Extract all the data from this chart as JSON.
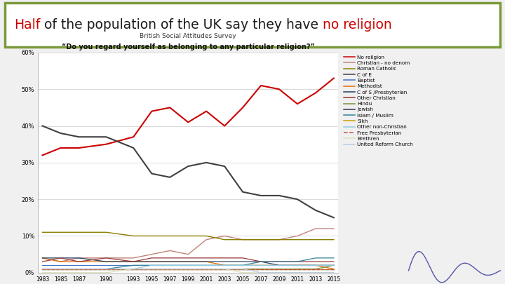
{
  "title_parts": [
    {
      "text": "Half",
      "color": "#cc0000"
    },
    {
      "text": " of the population of the UK say they have ",
      "color": "#1a1a1a"
    },
    {
      "text": "no religion",
      "color": "#cc0000"
    }
  ],
  "title_border_color": "#7a9a3a",
  "chart_title1": "British Social Attitudes Survey",
  "chart_title2": "“Do you regard yourself as belonging to any particular religion?”",
  "years": [
    1983,
    1985,
    1987,
    1990,
    1993,
    1995,
    1997,
    1999,
    2001,
    2003,
    2005,
    2007,
    2009,
    2011,
    2013,
    2015
  ],
  "series": [
    {
      "name": "No religion",
      "color": "#cc0000",
      "lw": 1.5,
      "values": [
        32,
        34,
        34,
        35,
        37,
        44,
        45,
        41,
        44,
        40,
        45,
        51,
        50,
        46,
        49,
        53
      ]
    },
    {
      "name": "Christian - no denom",
      "color": "#c0857a",
      "lw": 1.0,
      "values": [
        4,
        3,
        4,
        4,
        4,
        5,
        6,
        5,
        9,
        10,
        9,
        9,
        9,
        10,
        12,
        12
      ]
    },
    {
      "name": "Roman Catholic",
      "color": "#8b8000",
      "lw": 1.0,
      "values": [
        11,
        11,
        11,
        11,
        10,
        10,
        10,
        10,
        10,
        9,
        9,
        9,
        9,
        9,
        9,
        9
      ]
    },
    {
      "name": "C of E",
      "color": "#404040",
      "lw": 1.5,
      "values": [
        40,
        38,
        37,
        37,
        34,
        27,
        26,
        29,
        30,
        29,
        22,
        21,
        21,
        20,
        17,
        15
      ]
    },
    {
      "name": "Baptist",
      "color": "#4472c4",
      "lw": 0.9,
      "values": [
        2,
        2,
        2,
        2,
        2,
        2,
        2,
        2,
        2,
        2,
        2,
        2,
        2,
        2,
        2,
        2
      ]
    },
    {
      "name": "Methodist",
      "color": "#e36c00",
      "lw": 0.9,
      "values": [
        4,
        3,
        3,
        3,
        3,
        3,
        3,
        3,
        3,
        2,
        2,
        2,
        2,
        2,
        2,
        1
      ]
    },
    {
      "name": "C of S /Presbyterian",
      "color": "#244061",
      "lw": 0.9,
      "values": [
        4,
        4,
        4,
        3,
        3,
        3,
        3,
        3,
        3,
        3,
        3,
        3,
        2,
        2,
        2,
        2
      ]
    },
    {
      "name": "Other Christian",
      "color": "#953735",
      "lw": 0.9,
      "values": [
        3,
        4,
        3,
        4,
        3,
        4,
        4,
        4,
        4,
        4,
        4,
        3,
        3,
        3,
        3,
        3
      ]
    },
    {
      "name": "Hindu",
      "color": "#76923c",
      "lw": 0.9,
      "values": [
        1,
        1,
        1,
        1,
        1,
        1,
        1,
        1,
        1,
        1,
        1,
        1,
        1,
        1,
        1,
        2
      ]
    },
    {
      "name": "Jewish",
      "color": "#403152",
      "lw": 0.9,
      "values": [
        1,
        1,
        1,
        1,
        1,
        1,
        1,
        1,
        1,
        1,
        1,
        1,
        1,
        1,
        1,
        1
      ]
    },
    {
      "name": "Islam / Muslim",
      "color": "#31849b",
      "lw": 0.9,
      "values": [
        1,
        1,
        1,
        1,
        2,
        2,
        2,
        2,
        2,
        2,
        2,
        3,
        3,
        3,
        4,
        4
      ]
    },
    {
      "name": "Sikh",
      "color": "#c6a000",
      "lw": 0.9,
      "values": [
        1,
        1,
        1,
        1,
        1,
        1,
        1,
        1,
        1,
        1,
        1,
        1,
        1,
        1,
        1,
        1
      ]
    },
    {
      "name": "Other non-Christian",
      "color": "#92cddc",
      "lw": 0.9,
      "values": [
        1,
        1,
        1,
        1,
        1,
        2,
        2,
        2,
        2,
        2,
        2,
        2,
        2,
        2,
        2,
        2
      ]
    },
    {
      "name": "Free Presbyterian",
      "color": "#c0504d",
      "lw": 0.9,
      "ls": "--",
      "values": [
        1,
        1,
        1,
        1,
        1,
        1,
        1,
        1,
        1,
        1,
        1,
        1,
        1,
        1,
        1,
        1
      ]
    },
    {
      "name": "Brethren",
      "color": "#d7e4bc",
      "lw": 0.9,
      "values": [
        0,
        0,
        0,
        0,
        1,
        1,
        1,
        1,
        1,
        1,
        0,
        0,
        0,
        0,
        0,
        0
      ]
    },
    {
      "name": "United Reform Church",
      "color": "#b8cce4",
      "lw": 0.9,
      "values": [
        1,
        1,
        1,
        1,
        1,
        1,
        1,
        1,
        1,
        1,
        1,
        0,
        0,
        0,
        0,
        0
      ]
    }
  ],
  "ylim": [
    0,
    60
  ],
  "yticks": [
    0,
    10,
    20,
    30,
    40,
    50,
    60
  ],
  "ytick_labels": [
    "0%",
    "10%",
    "20%",
    "30%",
    "40%",
    "50%",
    "60%"
  ],
  "bg_color": "#ffffff",
  "chart_bg": "#ffffff",
  "outer_bg": "#f0f0f0"
}
